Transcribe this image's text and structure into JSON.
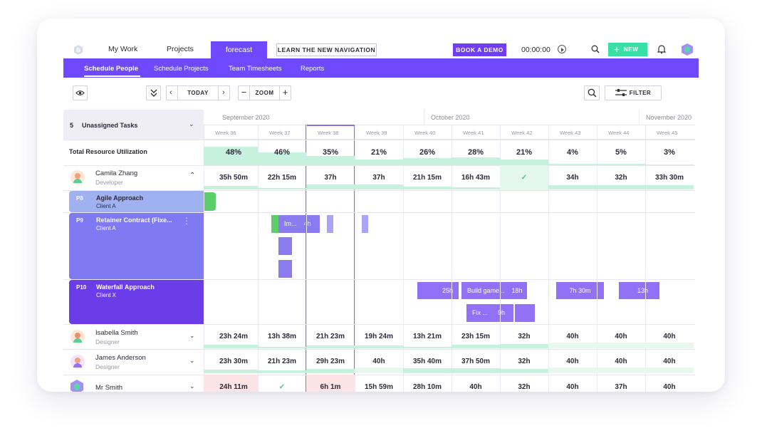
{
  "nav": {
    "items": [
      "My Work",
      "Projects"
    ],
    "active": "forecast",
    "learn": "LEARN THE NEW NAVIGATION",
    "demo": "BOOK A DEMO",
    "timer": "00:00:00",
    "new": "NEW"
  },
  "subnav": [
    "Schedule People",
    "Schedule Projects",
    "Team Timesheets",
    "Reports"
  ],
  "toolbar": {
    "today": "TODAY",
    "zoom": "ZOOM",
    "filter": "FILTER"
  },
  "months": [
    "September 2020",
    "October 2020",
    "November 2020"
  ],
  "weeks": [
    "Week 36",
    "Week 37",
    "Week 38",
    "Week 39",
    "Week 40",
    "Week 41",
    "Week 42",
    "Week 43",
    "Week 44",
    "Week 45"
  ],
  "unassigned": {
    "count": "5",
    "label": "Unassigned Tasks"
  },
  "utilization": {
    "label": "Total Resource Utilization",
    "values": [
      "48%",
      "46%",
      "35%",
      "21%",
      "26%",
      "28%",
      "21%",
      "4%",
      "5%",
      "3%"
    ]
  },
  "people": [
    {
      "name": "Camila Zhang",
      "role": "Developer",
      "hours": [
        "35h 50m",
        "22h 15m",
        "37h",
        "37h",
        "21h 15m",
        "16h 43m",
        "",
        "34h",
        "32h",
        "33h 30m"
      ]
    },
    {
      "name": "Isabella Smith",
      "role": "Designer",
      "hours": [
        "23h 24m",
        "13h 38m",
        "21h 23m",
        "19h 24m",
        "13h 21m",
        "23h 15m",
        "32h",
        "40h",
        "40h",
        "40h"
      ]
    },
    {
      "name": "James Anderson",
      "role": "Designer",
      "hours": [
        "23h 30m",
        "21h 23m",
        "29h 23m",
        "40h",
        "35h 40m",
        "37h 50m",
        "32h",
        "40h",
        "40h",
        "40h"
      ]
    },
    {
      "name": "Mr Smith",
      "role": "",
      "hours": [
        "24h 11m",
        "",
        "6h 1m",
        "15h 59m",
        "28h 10m",
        "40h",
        "32h",
        "40h",
        "37h",
        "40h"
      ]
    }
  ],
  "projects": [
    {
      "code": "P8",
      "name": "Agile Approach",
      "client": "Client A",
      "color": "#9fb1f0"
    },
    {
      "code": "P9",
      "name": "Retainer Contract (Fixe...",
      "client": "Client A",
      "color": "#7f79f2"
    },
    {
      "code": "P10",
      "name": "Waterfall Approach",
      "client": "Client X",
      "color": "#6b3de8"
    }
  ],
  "tasks": {
    "p9_label": "Im...",
    "p9_hours": "4h",
    "p10": [
      {
        "label": "",
        "hours": "25h"
      },
      {
        "label": "Build game...",
        "hours": "18h"
      },
      {
        "label": "",
        "hours": "7h 30m"
      },
      {
        "label": "",
        "hours": "13h"
      },
      {
        "label": "Fix ...",
        "hours": "9h"
      }
    ]
  }
}
